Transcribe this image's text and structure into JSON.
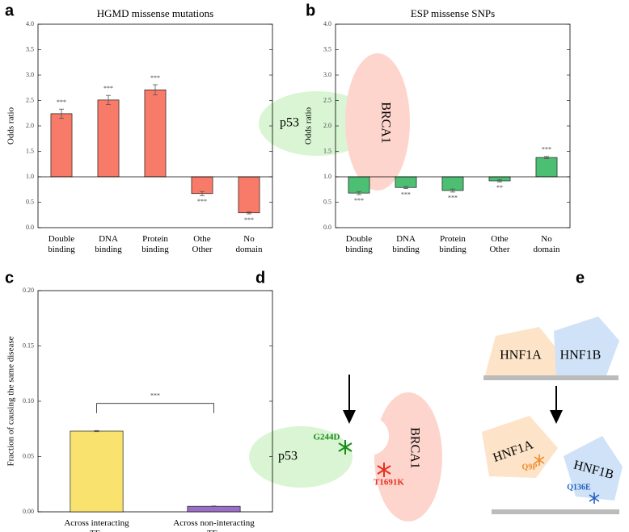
{
  "chart_data": [
    {
      "type": "bar",
      "panel": "a",
      "title": "HGMD missense mutations",
      "ylabel": "Odds ratio",
      "categories": [
        "Double binding",
        "DNA binding",
        "Protein binding",
        "Other",
        "No domain"
      ],
      "values": [
        2.24,
        2.51,
        2.71,
        0.67,
        0.29
      ],
      "errors": [
        0.09,
        0.09,
        0.1,
        0.04,
        0.02
      ],
      "significance": [
        "***",
        "***",
        "***",
        "***",
        "***"
      ],
      "color": "#f87a68",
      "baseline": 1,
      "ylim": [
        0,
        4
      ],
      "yticks": [
        {
          "value": 0,
          "label": "0.0"
        },
        0.5,
        {
          "value": 1,
          "label": "1.0"
        },
        1.5,
        {
          "value": 2,
          "label": "2.0"
        },
        2.5,
        {
          "value": 3,
          "label": "3.0"
        },
        3.5,
        {
          "value": 4,
          "label": "4.0"
        }
      ]
    },
    {
      "type": "bar",
      "panel": "b",
      "title": "ESP missense SNPs",
      "ylabel": "Odds ratio",
      "categories": [
        "Double binding",
        "DNA binding",
        "Protein binding",
        "Other",
        "No domain"
      ],
      "values": [
        0.68,
        0.79,
        0.73,
        0.92,
        1.38
      ],
      "errors": [
        0.03,
        0.02,
        0.03,
        0.02,
        0.02
      ],
      "significance": [
        "***",
        "***",
        "***",
        "**",
        "***"
      ],
      "color": "#4dbf72",
      "baseline": 1,
      "ylim": [
        0,
        4
      ],
      "yticks": [
        {
          "value": 0,
          "label": "0.0"
        },
        0.5,
        {
          "value": 1,
          "label": "1.0"
        },
        1.5,
        {
          "value": 2,
          "label": "2.0"
        },
        2.5,
        {
          "value": 3,
          "label": "3.0"
        },
        3.5,
        {
          "value": 4,
          "label": "4.0"
        }
      ]
    },
    {
      "type": "bar",
      "panel": "c",
      "ylabel": "Fraction of causing the same disease",
      "categories": [
        "Across interacting TFs",
        "Across non-interacting TFs"
      ],
      "values": [
        0.073,
        0.005
      ],
      "errors": [
        0.0005,
        0.0003
      ],
      "colors": [
        "#f9e26e",
        "#9a6fc4"
      ],
      "baseline": 0,
      "annotation": {
        "text": "***",
        "y": 0.098
      },
      "ylim": [
        0,
        0.2
      ],
      "yticks": [
        {
          "value": 0,
          "label": "0.00"
        },
        {
          "value": 0.05,
          "label": "0.05"
        },
        {
          "value": 0.1,
          "label": "0.10"
        },
        {
          "value": 0.15,
          "label": "0.15"
        },
        {
          "value": 0.2,
          "label": "0.20"
        }
      ]
    }
  ],
  "diagrams": {
    "d": {
      "panel": "d",
      "before": {
        "left": "p53",
        "right": "BRCA1"
      },
      "after": {
        "left": "p53",
        "right": "BRCA1",
        "left_mutation": "G244D",
        "right_mutation": "T1691K"
      }
    },
    "e": {
      "panel": "e",
      "before": {
        "left": "HNF1A",
        "right": "HNF1B"
      },
      "after": {
        "left": "HNF1A",
        "right": "HNF1B",
        "left_mutation": "Q9P",
        "right_mutation": "Q136E"
      }
    }
  }
}
